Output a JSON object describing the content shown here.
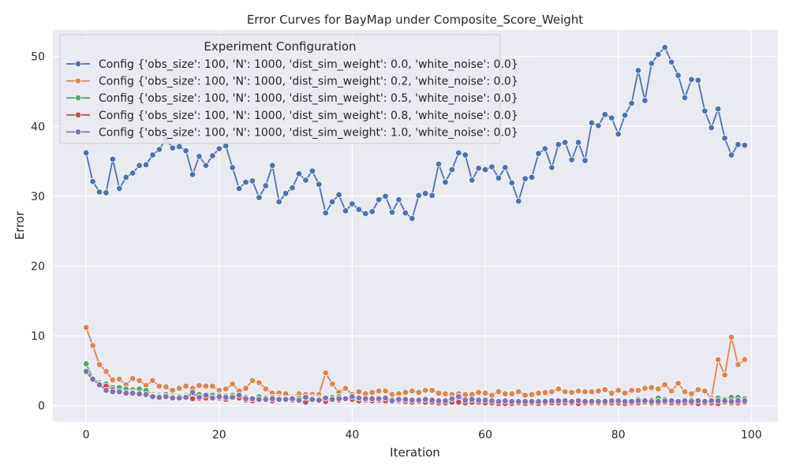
{
  "chart_data": {
    "type": "line",
    "title": "Error Curves for BayMap under Composite_Score_Weight",
    "xlabel": "Iteration",
    "ylabel": "Error",
    "xlim": [
      -5,
      104
    ],
    "ylim": [
      -2.3,
      53.8
    ],
    "xticks": [
      0,
      20,
      40,
      60,
      80,
      100
    ],
    "yticks": [
      0,
      10,
      20,
      30,
      40,
      50
    ],
    "grid": true,
    "background": "#eaeaf2",
    "legend": {
      "title": "Experiment Configuration",
      "placement": "top-left"
    },
    "x": [
      0,
      1,
      2,
      3,
      4,
      5,
      6,
      7,
      8,
      9,
      10,
      11,
      12,
      13,
      14,
      15,
      16,
      17,
      18,
      19,
      20,
      21,
      22,
      23,
      24,
      25,
      26,
      27,
      28,
      29,
      30,
      31,
      32,
      33,
      34,
      35,
      36,
      37,
      38,
      39,
      40,
      41,
      42,
      43,
      44,
      45,
      46,
      47,
      48,
      49,
      50,
      51,
      52,
      53,
      54,
      55,
      56,
      57,
      58,
      59,
      60,
      61,
      62,
      63,
      64,
      65,
      66,
      67,
      68,
      69,
      70,
      71,
      72,
      73,
      74,
      75,
      76,
      77,
      78,
      79,
      80,
      81,
      82,
      83,
      84,
      85,
      86,
      87,
      88,
      89,
      90,
      91,
      92,
      93,
      94,
      95,
      96,
      97,
      98,
      99
    ],
    "series": [
      {
        "name": "Config {'obs_size': 100, 'N': 1000, 'dist_sim_weight': 0.0, 'white_noise': 0.0}",
        "color": "#4c72b0",
        "values": [
          36.2,
          32.1,
          30.6,
          30.5,
          35.3,
          31.1,
          32.7,
          33.3,
          34.4,
          34.5,
          35.9,
          36.7,
          38.2,
          36.9,
          37.1,
          36.5,
          33.1,
          35.7,
          34.4,
          35.8,
          36.8,
          37.2,
          34.1,
          31.1,
          32.0,
          32.2,
          29.8,
          31.5,
          34.4,
          29.2,
          30.4,
          31.2,
          33.2,
          32.3,
          33.6,
          31.7,
          27.6,
          29.2,
          30.2,
          27.9,
          28.9,
          28.1,
          27.5,
          27.8,
          29.5,
          30.0,
          27.7,
          29.5,
          27.6,
          26.8,
          30.1,
          30.4,
          30.1,
          34.6,
          32.0,
          33.8,
          36.2,
          35.9,
          32.3,
          34.0,
          33.8,
          34.2,
          32.6,
          34.1,
          31.9,
          29.3,
          32.5,
          32.7,
          36.1,
          36.8,
          34.1,
          37.4,
          37.7,
          35.2,
          37.7,
          35.1,
          40.5,
          40.1,
          41.7,
          41.2,
          38.9,
          41.6,
          43.3,
          48.0,
          43.7,
          49.0,
          50.3,
          51.3,
          49.2,
          47.3,
          44.1,
          46.7,
          46.6,
          42.2,
          39.8,
          42.5,
          38.3,
          35.9,
          37.4,
          37.3
        ]
      },
      {
        "name": "Config {'obs_size': 100, 'N': 1000, 'dist_sim_weight': 0.2, 'white_noise': 0.0}",
        "color": "#dd8452",
        "values": [
          11.2,
          8.6,
          5.9,
          4.9,
          3.7,
          3.8,
          3.0,
          3.9,
          3.6,
          2.9,
          3.6,
          2.8,
          2.7,
          2.2,
          2.5,
          2.8,
          2.5,
          2.9,
          2.8,
          2.8,
          2.2,
          2.4,
          3.1,
          2.1,
          2.5,
          3.6,
          3.3,
          2.4,
          1.8,
          1.8,
          1.7,
          1.3,
          1.7,
          1.6,
          1.6,
          1.6,
          4.7,
          3.1,
          1.9,
          2.5,
          1.6,
          2.0,
          1.7,
          1.9,
          2.1,
          2.1,
          1.6,
          1.7,
          1.9,
          2.1,
          1.9,
          2.2,
          2.2,
          1.8,
          1.7,
          1.6,
          1.7,
          1.6,
          1.6,
          1.9,
          1.8,
          1.5,
          2.0,
          1.7,
          1.7,
          2.0,
          1.5,
          1.6,
          1.8,
          1.9,
          2.0,
          2.4,
          2.0,
          1.9,
          2.1,
          2.0,
          2.0,
          2.1,
          2.3,
          1.8,
          2.2,
          1.8,
          2.2,
          2.2,
          2.5,
          2.6,
          2.4,
          3.0,
          2.1,
          3.2,
          2.0,
          1.7,
          2.3,
          2.1,
          1.1,
          6.6,
          4.4,
          9.8,
          5.9,
          6.6
        ]
      },
      {
        "name": "Config {'obs_size': 100, 'N': 1000, 'dist_sim_weight': 0.5, 'white_noise': 0.0}",
        "color": "#55a868",
        "values": [
          6.0,
          3.9,
          3.3,
          3.1,
          2.6,
          2.6,
          2.4,
          2.3,
          2.4,
          2.2,
          1.6,
          1.5,
          1.6,
          1.4,
          1.3,
          1.5,
          1.4,
          1.6,
          1.2,
          1.5,
          1.5,
          1.4,
          1.5,
          1.4,
          1.2,
          1.1,
          1.3,
          1.1,
          1.2,
          1.2,
          1.0,
          1.1,
          1.1,
          1.0,
          1.2,
          1.1,
          1.1,
          1.2,
          1.3,
          1.1,
          1.1,
          1.0,
          0.9,
          1.0,
          1.0,
          1.1,
          0.9,
          1.0,
          1.0,
          0.9,
          0.8,
          0.9,
          0.9,
          0.8,
          0.8,
          0.9,
          0.9,
          0.8,
          0.8,
          0.7,
          0.8,
          0.5,
          0.5,
          0.5,
          0.6,
          0.5,
          0.6,
          0.6,
          0.6,
          0.7,
          0.7,
          0.7,
          0.8,
          0.6,
          0.7,
          0.7,
          0.7,
          0.7,
          0.7,
          0.6,
          0.5,
          0.6,
          0.7,
          0.9,
          0.8,
          0.8,
          1.1,
          0.9,
          0.8,
          0.6,
          0.7,
          0.8,
          0.6,
          0.7,
          0.8,
          1.1,
          0.9,
          1.2,
          1.2,
          1.0
        ]
      },
      {
        "name": "Config {'obs_size': 100, 'N': 1000, 'dist_sim_weight': 0.8, 'white_noise': 0.0}",
        "color": "#c44e52",
        "values": [
          4.9,
          3.7,
          3.1,
          2.8,
          2.3,
          2.0,
          1.8,
          1.9,
          1.7,
          1.5,
          1.4,
          1.3,
          1.3,
          1.2,
          1.1,
          1.3,
          1.0,
          1.0,
          1.1,
          1.0,
          1.1,
          0.9,
          1.2,
          1.1,
          0.8,
          0.7,
          0.9,
          0.8,
          0.7,
          1.0,
          0.8,
          0.8,
          0.8,
          0.5,
          1.0,
          0.9,
          0.6,
          0.9,
          0.8,
          1.0,
          0.9,
          0.7,
          0.8,
          0.7,
          0.8,
          0.7,
          0.6,
          0.7,
          0.6,
          0.5,
          0.6,
          0.5,
          0.5,
          0.4,
          0.4,
          0.5,
          0.5,
          0.4,
          0.5,
          0.5,
          0.4,
          0.4,
          0.3,
          0.3,
          0.3,
          0.4,
          0.3,
          0.4,
          0.3,
          0.4,
          0.4,
          0.4,
          0.4,
          0.4,
          0.3,
          0.4,
          0.4,
          0.4,
          0.4,
          0.4,
          0.4,
          0.3,
          0.4,
          0.4,
          0.5,
          0.4,
          0.4,
          0.5,
          0.4,
          0.4,
          0.4,
          0.4,
          0.3,
          0.4,
          0.4,
          0.3,
          0.5,
          0.4,
          0.4,
          0.5
        ]
      },
      {
        "name": "Config {'obs_size': 100, 'N': 1000, 'dist_sim_weight': 1.0, 'white_noise': 0.0}",
        "color": "#8172b3",
        "values": [
          4.9,
          3.8,
          3.0,
          2.2,
          2.0,
          2.0,
          1.8,
          1.8,
          1.7,
          1.6,
          1.3,
          1.2,
          1.3,
          1.1,
          1.1,
          1.2,
          1.9,
          1.2,
          1.5,
          1.1,
          1.3,
          1.2,
          1.2,
          1.5,
          1.0,
          1.0,
          0.9,
          0.9,
          1.0,
          0.9,
          0.9,
          1.0,
          0.8,
          1.2,
          0.9,
          0.8,
          1.1,
          0.9,
          1.0,
          1.0,
          1.3,
          1.1,
          1.0,
          1.0,
          1.0,
          1.1,
          0.7,
          0.9,
          0.9,
          0.8,
          0.8,
          0.9,
          0.8,
          0.7,
          0.7,
          1.0,
          1.3,
          0.8,
          0.9,
          0.8,
          0.8,
          0.7,
          0.6,
          0.7,
          0.6,
          0.6,
          0.6,
          0.6,
          0.6,
          0.6,
          0.7,
          0.7,
          0.7,
          0.6,
          0.7,
          0.6,
          0.6,
          0.6,
          0.6,
          0.7,
          0.7,
          0.6,
          0.6,
          0.7,
          0.7,
          0.6,
          0.6,
          0.7,
          0.7,
          0.6,
          0.7,
          0.6,
          0.7,
          0.6,
          0.7,
          0.7,
          0.7,
          0.6,
          0.7,
          0.7
        ]
      }
    ]
  }
}
